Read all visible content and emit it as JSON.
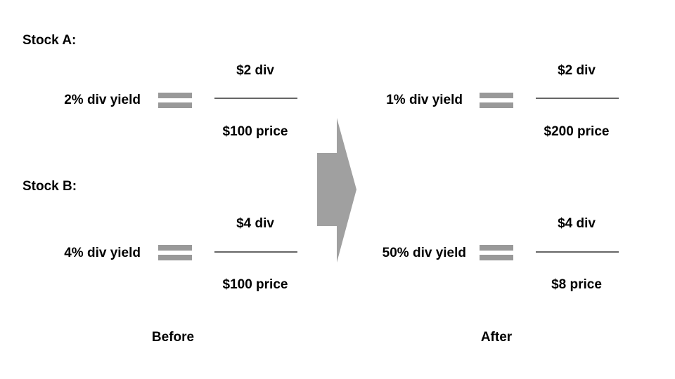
{
  "stock_a": {
    "label": "Stock A:",
    "before": {
      "yield": "2% div yield",
      "dividend": "$2 div",
      "price": "$100 price"
    },
    "after": {
      "yield": "1% div yield",
      "dividend": "$2 div",
      "price": "$200 price"
    }
  },
  "stock_b": {
    "label": "Stock B:",
    "before": {
      "yield": "4% div yield",
      "dividend": "$4 div",
      "price": "$100 price"
    },
    "after": {
      "yield": "50% div yield",
      "dividend": "$4 div",
      "price": "$8 price"
    }
  },
  "captions": {
    "before": "Before",
    "after": "After"
  },
  "colors": {
    "equals_sign": "#999999",
    "fraction_line": "#666666",
    "arrow": "#a0a0a0"
  }
}
